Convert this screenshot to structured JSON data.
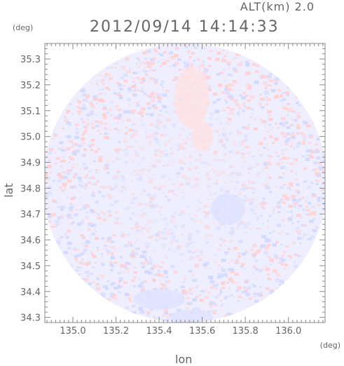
{
  "header": {
    "altitude_label": "ALT(km) 2.0",
    "timestamp": "2012/09/14 14:14:33"
  },
  "chart_data": {
    "type": "heatmap",
    "title": "2012/09/14 14:14:33",
    "xlabel": "lon",
    "ylabel": "lat",
    "x_unit": "(deg)",
    "y_unit": "(deg)",
    "xlim": [
      134.87,
      136.17
    ],
    "ylim": [
      34.28,
      35.36
    ],
    "x_ticks": [
      {
        "value": 135.0,
        "label": "135.0"
      },
      {
        "value": 135.2,
        "label": "135.2"
      },
      {
        "value": 135.4,
        "label": "135.4"
      },
      {
        "value": 135.6,
        "label": "135.6"
      },
      {
        "value": 135.8,
        "label": "135.8"
      },
      {
        "value": 136.0,
        "label": "136.0"
      }
    ],
    "y_ticks": [
      {
        "value": 34.3,
        "label": "34.3"
      },
      {
        "value": 34.4,
        "label": "34.4"
      },
      {
        "value": 34.5,
        "label": "34.5"
      },
      {
        "value": 34.6,
        "label": "34.6"
      },
      {
        "value": 34.7,
        "label": "34.7"
      },
      {
        "value": 34.8,
        "label": "34.8"
      },
      {
        "value": 34.9,
        "label": "34.9"
      },
      {
        "value": 35.0,
        "label": "35.0"
      },
      {
        "value": 35.1,
        "label": "35.1"
      },
      {
        "value": 35.2,
        "label": "35.2"
      },
      {
        "value": 35.3,
        "label": "35.3"
      }
    ],
    "radar_center": {
      "lon": 135.52,
      "lat": 34.82
    },
    "radar_radius_deg_lon": 0.66,
    "radar_radius_deg_lat": 0.54,
    "colors": {
      "positive": "#ffd0d0",
      "negative": "#d0d8ff",
      "neutral": "#eeeeff"
    },
    "grid": false
  }
}
